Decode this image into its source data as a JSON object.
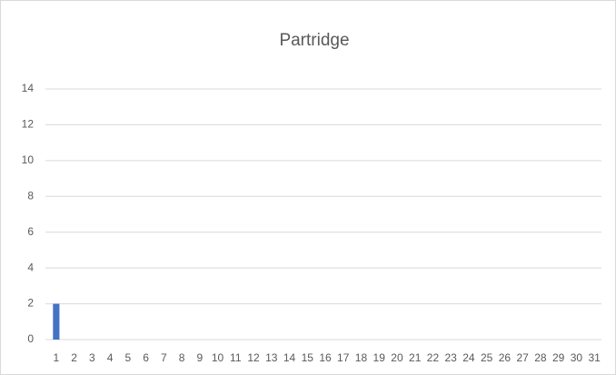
{
  "chart_data": {
    "type": "bar",
    "title": "Partridge",
    "categories": [
      "1",
      "2",
      "3",
      "4",
      "5",
      "6",
      "7",
      "8",
      "9",
      "10",
      "11",
      "12",
      "13",
      "14",
      "15",
      "16",
      "17",
      "18",
      "19",
      "20",
      "21",
      "22",
      "23",
      "24",
      "25",
      "26",
      "27",
      "28",
      "29",
      "30",
      "31"
    ],
    "values": [
      2,
      0,
      0,
      0,
      0,
      0,
      0,
      0,
      0,
      0,
      0,
      0,
      0,
      0,
      0,
      0,
      0,
      0,
      0,
      0,
      0,
      0,
      0,
      0,
      0,
      0,
      0,
      0,
      0,
      0,
      0
    ],
    "color": "#4472c4",
    "ylim": [
      0,
      14
    ],
    "yticks": [
      0,
      2,
      4,
      6,
      8,
      10,
      12,
      14
    ],
    "grid": true
  }
}
